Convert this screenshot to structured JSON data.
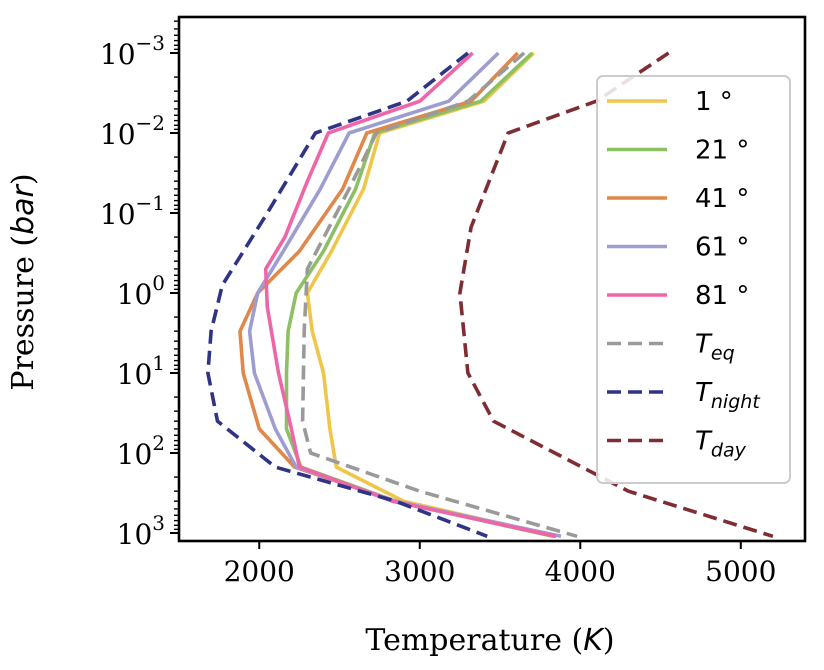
{
  "chart_data": {
    "type": "line",
    "xlabel": "Temperature (K)",
    "xlabel_prefix": "Temperature (",
    "xlabel_var": "K",
    "xlabel_suffix": ")",
    "ylabel_prefix": "Pressure (",
    "ylabel_var": "bar",
    "ylabel_suffix": ")",
    "xlim": [
      1500,
      5400
    ],
    "ylim_log10": [
      3.1,
      -3.45
    ],
    "y_scale": "log",
    "y_inverted": true,
    "grid": false,
    "legend_position": "upper-right",
    "x_ticks": [
      {
        "value": 2000,
        "label": "2000"
      },
      {
        "value": 3000,
        "label": "3000"
      },
      {
        "value": 4000,
        "label": "4000"
      },
      {
        "value": 5000,
        "label": "5000"
      }
    ],
    "y_ticks": [
      {
        "exp": -3,
        "base": "10",
        "sup": "−3"
      },
      {
        "exp": -2,
        "base": "10",
        "sup": "−2"
      },
      {
        "exp": -1,
        "base": "10",
        "sup": "−1"
      },
      {
        "exp": 0,
        "base": "10",
        "sup": "0"
      },
      {
        "exp": 1,
        "base": "10",
        "sup": "1"
      },
      {
        "exp": 2,
        "base": "10",
        "sup": "2"
      },
      {
        "exp": 3,
        "base": "10",
        "sup": "3"
      }
    ],
    "series": [
      {
        "name": "1 °",
        "color": "#f0c64a",
        "dash": false,
        "points": [
          [
            3710,
            0.001
          ],
          [
            3400,
            0.004
          ],
          [
            2750,
            0.01
          ],
          [
            2650,
            0.05
          ],
          [
            2450,
            0.3
          ],
          [
            2300,
            1
          ],
          [
            2330,
            3
          ],
          [
            2400,
            10
          ],
          [
            2440,
            50
          ],
          [
            2480,
            150
          ],
          [
            2900,
            400
          ],
          [
            3850,
            1100
          ]
        ]
      },
      {
        "name": "21 °",
        "color": "#8cc063",
        "dash": false,
        "points": [
          [
            3700,
            0.001
          ],
          [
            3380,
            0.004
          ],
          [
            2720,
            0.01
          ],
          [
            2600,
            0.05
          ],
          [
            2400,
            0.3
          ],
          [
            2230,
            1
          ],
          [
            2180,
            3
          ],
          [
            2170,
            10
          ],
          [
            2170,
            50
          ],
          [
            2260,
            150
          ],
          [
            2850,
            400
          ],
          [
            3830,
            1100
          ]
        ]
      },
      {
        "name": "41 °",
        "color": "#e0874a",
        "dash": false,
        "points": [
          [
            3610,
            0.001
          ],
          [
            3320,
            0.004
          ],
          [
            2670,
            0.01
          ],
          [
            2520,
            0.05
          ],
          [
            2250,
            0.3
          ],
          [
            1990,
            1
          ],
          [
            1880,
            3
          ],
          [
            1900,
            10
          ],
          [
            2000,
            50
          ],
          [
            2220,
            150
          ],
          [
            2850,
            400
          ],
          [
            3840,
            1100
          ]
        ]
      },
      {
        "name": "61 °",
        "color": "#9e9dd0",
        "dash": false,
        "points": [
          [
            3490,
            0.001
          ],
          [
            3180,
            0.004
          ],
          [
            2560,
            0.01
          ],
          [
            2380,
            0.05
          ],
          [
            2150,
            0.3
          ],
          [
            1990,
            1
          ],
          [
            1940,
            3
          ],
          [
            1970,
            10
          ],
          [
            2100,
            50
          ],
          [
            2230,
            150
          ],
          [
            2850,
            400
          ],
          [
            3880,
            1100
          ]
        ]
      },
      {
        "name": "81 °",
        "color": "#ee66a8",
        "dash": false,
        "points": [
          [
            3330,
            0.001
          ],
          [
            3000,
            0.004
          ],
          [
            2430,
            0.01
          ],
          [
            2300,
            0.04
          ],
          [
            2160,
            0.2
          ],
          [
            2040,
            0.5
          ],
          [
            2050,
            1.5
          ],
          [
            2120,
            10
          ],
          [
            2200,
            50
          ],
          [
            2250,
            150
          ],
          [
            2830,
            400
          ],
          [
            3850,
            1100
          ]
        ]
      },
      {
        "name": "T_eq",
        "name_main": "T",
        "name_sub": "eq",
        "color": "#9a9a9a",
        "dash": true,
        "points": [
          [
            3650,
            0.001
          ],
          [
            3300,
            0.004
          ],
          [
            2730,
            0.01
          ],
          [
            2560,
            0.05
          ],
          [
            2300,
            0.5
          ],
          [
            2280,
            3
          ],
          [
            2270,
            40
          ],
          [
            2320,
            100
          ],
          [
            3000,
            300
          ],
          [
            3980,
            1100
          ]
        ]
      },
      {
        "name": "T_night",
        "name_main": "T",
        "name_sub": "night",
        "color": "#2f3485",
        "dash": true,
        "points": [
          [
            3300,
            0.001
          ],
          [
            2920,
            0.004
          ],
          [
            2350,
            0.01
          ],
          [
            2050,
            0.1
          ],
          [
            1770,
            0.8
          ],
          [
            1700,
            3
          ],
          [
            1680,
            10
          ],
          [
            1740,
            40
          ],
          [
            2100,
            150
          ],
          [
            2850,
            400
          ],
          [
            3420,
            1100
          ]
        ]
      },
      {
        "name": "T_day",
        "name_main": "T",
        "name_sub": "day",
        "color": "#7e2d33",
        "dash": true,
        "points": [
          [
            4550,
            0.001
          ],
          [
            4100,
            0.004
          ],
          [
            3550,
            0.01
          ],
          [
            3320,
            0.15
          ],
          [
            3250,
            1
          ],
          [
            3300,
            10
          ],
          [
            3460,
            40
          ],
          [
            4300,
            300
          ],
          [
            5200,
            1100
          ]
        ]
      }
    ]
  }
}
